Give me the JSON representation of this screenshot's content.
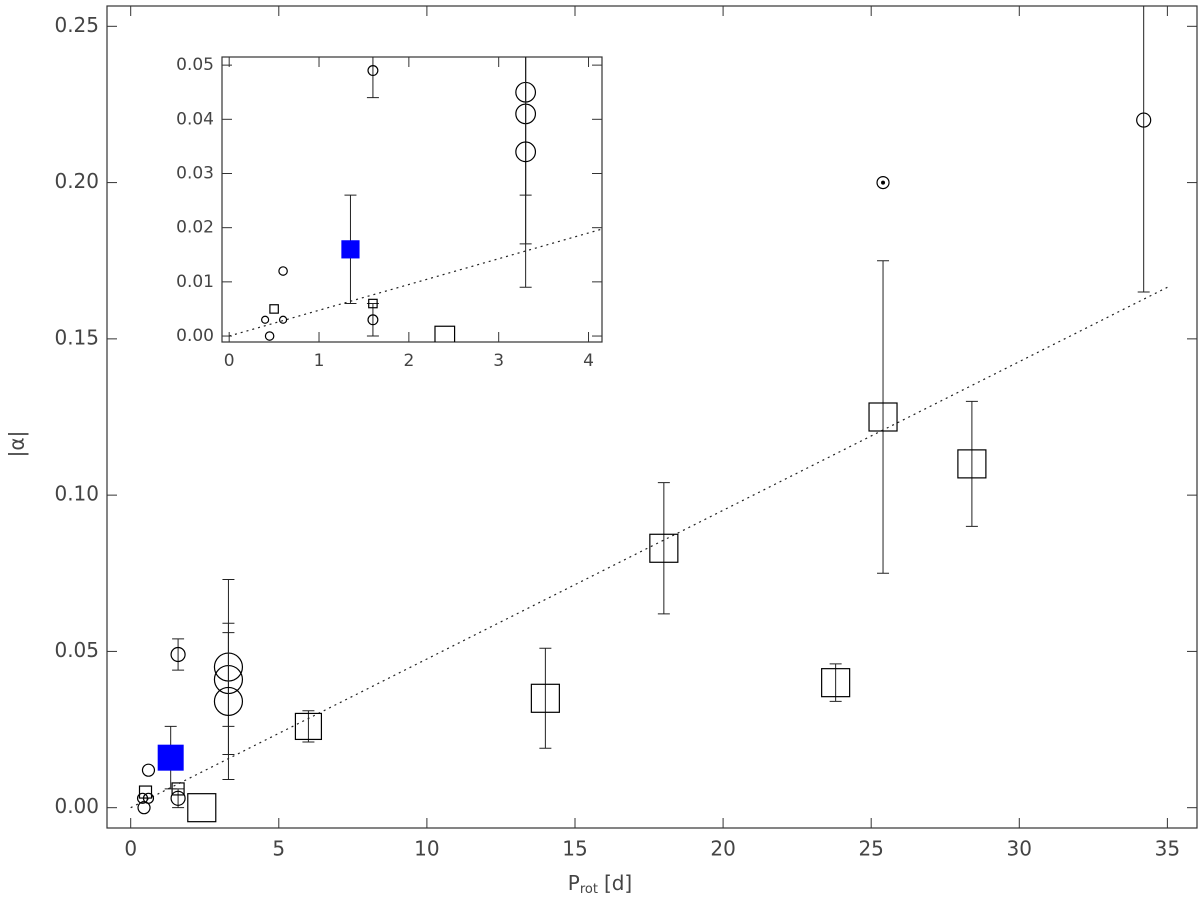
{
  "chart_data": {
    "type": "scatter",
    "xlabel": "P",
    "xlabel_sub": "rot",
    "xlabel_unit": "[d]",
    "ylabel": "|α|",
    "xlim": [
      -0.8,
      36
    ],
    "ylim": [
      -0.0065,
      0.2565
    ],
    "xticks": [
      0,
      5,
      10,
      15,
      20,
      25,
      30,
      35
    ],
    "yticks": [
      {
        "value": 0,
        "label": "0.00"
      },
      {
        "value": 0.05,
        "label": "0.05"
      },
      {
        "value": 0.1,
        "label": "0.10"
      },
      {
        "value": 0.15,
        "label": "0.15"
      },
      {
        "value": 0.2,
        "label": "0.20"
      },
      {
        "value": 0.25,
        "label": "0.25"
      }
    ],
    "series": [
      {
        "marker": "circle",
        "color": "#000000",
        "x": [
          0.4,
          0.45,
          0.6,
          0.6,
          1.6,
          1.6,
          3.3,
          3.3,
          3.3,
          34.2
        ],
        "values": [
          0.003,
          0.0,
          0.003,
          0.012,
          0.049,
          0.003,
          0.045,
          0.041,
          0.034,
          0.22
        ],
        "errors": [
          null,
          null,
          null,
          null,
          0.005,
          0.003,
          0.028,
          0.015,
          0.025,
          0.055
        ]
      },
      {
        "marker": "sun",
        "color": "#000000",
        "x": [
          25.4
        ],
        "values": [
          0.2
        ],
        "errors": [
          null
        ]
      },
      {
        "marker": "square",
        "color": "#000000",
        "x": [
          0.5,
          1.6,
          2.4,
          6.0,
          14.0,
          18.0,
          23.8,
          25.4,
          28.4
        ],
        "values": [
          0.005,
          0.006,
          0.0,
          0.026,
          0.035,
          0.083,
          0.04,
          0.125,
          0.11
        ],
        "errors": [
          null,
          null,
          null,
          0.005,
          0.016,
          0.021,
          0.006,
          0.05,
          0.02
        ]
      },
      {
        "marker": "filled-square",
        "color": "#0000ff",
        "x": [
          1.35
        ],
        "values": [
          0.016
        ],
        "errors": [
          0.01
        ]
      }
    ],
    "fit": {
      "x": [
        0,
        35
      ],
      "values": [
        0,
        0.1665
      ]
    },
    "inset": {
      "xlim": [
        -0.08,
        4.15
      ],
      "ylim": [
        -0.0011,
        0.0515
      ],
      "xticks": [
        0,
        1,
        2,
        3,
        4
      ],
      "yticks": [
        {
          "value": 0,
          "label": "0.00"
        },
        {
          "value": 0.01,
          "label": "0.01"
        },
        {
          "value": 0.02,
          "label": "0.02"
        },
        {
          "value": 0.03,
          "label": "0.03"
        },
        {
          "value": 0.04,
          "label": "0.04"
        },
        {
          "value": 0.05,
          "label": "0.05"
        }
      ]
    }
  }
}
